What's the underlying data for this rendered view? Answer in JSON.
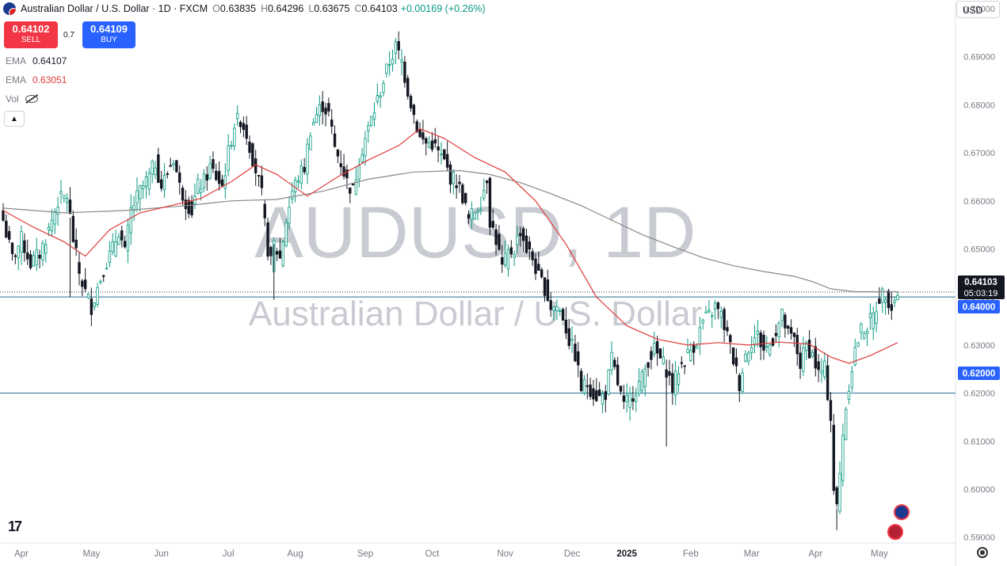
{
  "header": {
    "title": "Australian Dollar / U.S. Dollar · 1D · FXCM",
    "open_label": "O",
    "open": "0.63835",
    "high_label": "H",
    "high": "0.64296",
    "low_label": "L",
    "low": "0.63675",
    "close_label": "C",
    "close": "0.64103",
    "change": "+0.00169 (+0.26%)"
  },
  "trade": {
    "sell_price": "0.64102",
    "sell_label": "SELL",
    "spread": "0.7",
    "buy_price": "0.64109",
    "buy_label": "BUY"
  },
  "indicators": {
    "ema1_label": "EMA",
    "ema1_value": "0.64107",
    "ema2_label": "EMA",
    "ema2_value": "0.63051",
    "vol_label": "Vol"
  },
  "currency_button": "USD",
  "watermark": {
    "symbol": "AUDUSD, 1D",
    "name": "Australian Dollar / U.S. Dollar"
  },
  "price_tags": {
    "last_price": "0.64103",
    "countdown": "05:03:19",
    "level_1": "0.64000",
    "level_2": "0.62000"
  },
  "colors": {
    "up": "#089981",
    "down": "#131722",
    "ema_fast": "#e03a3a",
    "ema_slow": "#888888",
    "hline": "#1f6f8b",
    "tag_dark": "#131722",
    "tag_blue": "#2962ff"
  },
  "chart_data": {
    "type": "candlestick",
    "symbol": "AUDUSD",
    "timeframe": "1D",
    "ylim": [
      0.5888,
      0.7018
    ],
    "y_ticks": [
      "0.70000",
      "0.69000",
      "0.68000",
      "0.67000",
      "0.66000",
      "0.65000",
      "0.64000",
      "0.63000",
      "0.62000",
      "0.61000",
      "0.60000",
      "0.59000"
    ],
    "x_ticks": [
      "Apr",
      "May",
      "Jun",
      "Jul",
      "Aug",
      "Sep",
      "Oct",
      "Nov",
      "Dec",
      "2025",
      "Feb",
      "Mar",
      "Apr",
      "May"
    ],
    "horizontal_lines": [
      0.64,
      0.62
    ],
    "last_price": 0.64103,
    "price_path": [
      [
        0,
        0.656
      ],
      [
        3,
        0.648
      ],
      [
        6,
        0.652
      ],
      [
        9,
        0.647
      ],
      [
        12,
        0.649
      ],
      [
        15,
        0.654
      ],
      [
        18,
        0.66
      ],
      [
        21,
        0.661
      ],
      [
        23,
        0.652
      ],
      [
        25,
        0.645
      ],
      [
        27,
        0.641
      ],
      [
        29,
        0.638
      ],
      [
        31,
        0.642
      ],
      [
        33,
        0.646
      ],
      [
        36,
        0.65
      ],
      [
        38,
        0.654
      ],
      [
        40,
        0.649
      ],
      [
        42,
        0.658
      ],
      [
        45,
        0.662
      ],
      [
        48,
        0.665
      ],
      [
        50,
        0.668
      ],
      [
        52,
        0.663
      ],
      [
        54,
        0.666
      ],
      [
        56,
        0.669
      ],
      [
        58,
        0.663
      ],
      [
        60,
        0.66
      ],
      [
        62,
        0.658
      ],
      [
        64,
        0.663
      ],
      [
        66,
        0.664
      ],
      [
        68,
        0.667
      ],
      [
        70,
        0.665
      ],
      [
        72,
        0.663
      ],
      [
        74,
        0.67
      ],
      [
        76,
        0.676
      ],
      [
        78,
        0.677
      ],
      [
        80,
        0.674
      ],
      [
        82,
        0.669
      ],
      [
        84,
        0.664
      ],
      [
        85,
        0.661
      ],
      [
        86,
        0.655
      ],
      [
        87,
        0.65
      ],
      [
        88,
        0.647
      ],
      [
        89,
        0.651
      ],
      [
        91,
        0.648
      ],
      [
        93,
        0.656
      ],
      [
        95,
        0.662
      ],
      [
        97,
        0.665
      ],
      [
        99,
        0.667
      ],
      [
        101,
        0.675
      ],
      [
        103,
        0.678
      ],
      [
        105,
        0.68
      ],
      [
        107,
        0.678
      ],
      [
        109,
        0.671
      ],
      [
        111,
        0.668
      ],
      [
        113,
        0.664
      ],
      [
        115,
        0.662
      ],
      [
        117,
        0.669
      ],
      [
        119,
        0.673
      ],
      [
        121,
        0.677
      ],
      [
        123,
        0.681
      ],
      [
        125,
        0.685
      ],
      [
        127,
        0.689
      ],
      [
        129,
        0.692
      ],
      [
        131,
        0.689
      ],
      [
        133,
        0.683
      ],
      [
        135,
        0.678
      ],
      [
        137,
        0.673
      ],
      [
        139,
        0.672
      ],
      [
        141,
        0.672
      ],
      [
        143,
        0.67
      ],
      [
        145,
        0.668
      ],
      [
        147,
        0.665
      ],
      [
        149,
        0.664
      ],
      [
        151,
        0.661
      ],
      [
        153,
        0.656
      ],
      [
        155,
        0.658
      ],
      [
        157,
        0.66
      ],
      [
        159,
        0.665
      ],
      [
        160,
        0.656
      ],
      [
        162,
        0.652
      ],
      [
        164,
        0.646
      ],
      [
        166,
        0.649
      ],
      [
        168,
        0.65
      ],
      [
        170,
        0.654
      ],
      [
        172,
        0.65
      ],
      [
        174,
        0.648
      ],
      [
        176,
        0.644
      ],
      [
        178,
        0.642
      ],
      [
        180,
        0.638
      ],
      [
        182,
        0.638
      ],
      [
        184,
        0.636
      ],
      [
        186,
        0.631
      ],
      [
        188,
        0.628
      ],
      [
        190,
        0.621
      ],
      [
        192,
        0.622
      ],
      [
        194,
        0.62
      ],
      [
        196,
        0.619
      ],
      [
        198,
        0.62
      ],
      [
        200,
        0.627
      ],
      [
        202,
        0.622
      ],
      [
        204,
        0.617
      ],
      [
        206,
        0.619
      ],
      [
        208,
        0.621
      ],
      [
        210,
        0.623
      ],
      [
        212,
        0.627
      ],
      [
        214,
        0.629
      ],
      [
        216,
        0.627
      ],
      [
        218,
        0.625
      ],
      [
        220,
        0.621
      ],
      [
        222,
        0.625
      ],
      [
        224,
        0.627
      ],
      [
        226,
        0.629
      ],
      [
        228,
        0.631
      ],
      [
        230,
        0.635
      ],
      [
        232,
        0.636
      ],
      [
        234,
        0.638
      ],
      [
        236,
        0.636
      ],
      [
        238,
        0.632
      ],
      [
        240,
        0.627
      ],
      [
        242,
        0.622
      ],
      [
        244,
        0.628
      ],
      [
        246,
        0.631
      ],
      [
        248,
        0.632
      ],
      [
        250,
        0.629
      ],
      [
        252,
        0.63
      ],
      [
        254,
        0.633
      ],
      [
        256,
        0.636
      ],
      [
        258,
        0.632
      ],
      [
        260,
        0.631
      ],
      [
        262,
        0.626
      ],
      [
        264,
        0.63
      ],
      [
        266,
        0.628
      ],
      [
        268,
        0.624
      ],
      [
        270,
        0.625
      ],
      [
        272,
        0.615
      ],
      [
        273,
        0.6
      ],
      [
        274,
        0.596
      ],
      [
        275,
        0.603
      ],
      [
        276,
        0.612
      ],
      [
        278,
        0.622
      ],
      [
        280,
        0.629
      ],
      [
        282,
        0.633
      ],
      [
        284,
        0.634
      ],
      [
        286,
        0.636
      ],
      [
        288,
        0.64
      ],
      [
        290,
        0.641
      ],
      [
        292,
        0.638
      ],
      [
        294,
        0.641
      ]
    ],
    "series": [
      {
        "name": "EMA",
        "value": 0.64107,
        "points": [
          [
            0,
            0.6585
          ],
          [
            20,
            0.6575
          ],
          [
            40,
            0.658
          ],
          [
            60,
            0.659
          ],
          [
            75,
            0.66
          ],
          [
            90,
            0.6603
          ],
          [
            105,
            0.662
          ],
          [
            120,
            0.6645
          ],
          [
            135,
            0.666
          ],
          [
            150,
            0.6663
          ],
          [
            160,
            0.6655
          ],
          [
            170,
            0.6638
          ],
          [
            180,
            0.6615
          ],
          [
            190,
            0.659
          ],
          [
            200,
            0.656
          ],
          [
            210,
            0.653
          ],
          [
            220,
            0.6505
          ],
          [
            230,
            0.6482
          ],
          [
            240,
            0.6465
          ],
          [
            250,
            0.6453
          ],
          [
            260,
            0.6443
          ],
          [
            266,
            0.6432
          ],
          [
            272,
            0.6417
          ],
          [
            280,
            0.6411
          ],
          [
            294,
            0.6411
          ]
        ]
      },
      {
        "name": "EMA",
        "value": 0.63051,
        "points": [
          [
            0,
            0.658
          ],
          [
            10,
            0.6545
          ],
          [
            20,
            0.6515
          ],
          [
            27,
            0.6485
          ],
          [
            35,
            0.654
          ],
          [
            45,
            0.6575
          ],
          [
            55,
            0.659
          ],
          [
            65,
            0.6605
          ],
          [
            75,
            0.664
          ],
          [
            83,
            0.6675
          ],
          [
            90,
            0.6655
          ],
          [
            100,
            0.661
          ],
          [
            110,
            0.665
          ],
          [
            120,
            0.6685
          ],
          [
            130,
            0.6715
          ],
          [
            137,
            0.675
          ],
          [
            145,
            0.673
          ],
          [
            155,
            0.669
          ],
          [
            165,
            0.666
          ],
          [
            175,
            0.66
          ],
          [
            185,
            0.651
          ],
          [
            195,
            0.64
          ],
          [
            205,
            0.634
          ],
          [
            215,
            0.6312
          ],
          [
            225,
            0.63
          ],
          [
            235,
            0.6305
          ],
          [
            245,
            0.63
          ],
          [
            255,
            0.6306
          ],
          [
            265,
            0.6302
          ],
          [
            272,
            0.6275
          ],
          [
            278,
            0.6262
          ],
          [
            285,
            0.6278
          ],
          [
            294,
            0.6305
          ]
        ]
      }
    ]
  }
}
